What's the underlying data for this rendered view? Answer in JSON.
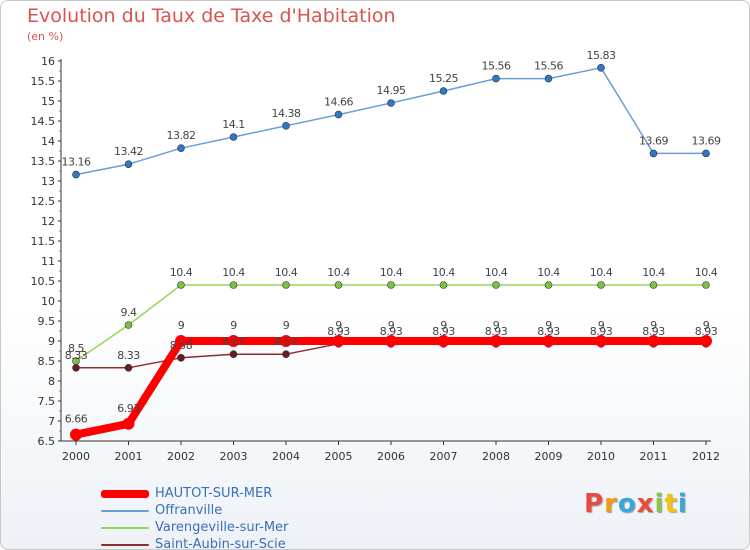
{
  "chart_data": {
    "type": "line",
    "title": "Evolution du Taux de Taxe d'Habitation",
    "subtitle": "(en %)",
    "x": [
      "2000",
      "2001",
      "2002",
      "2003",
      "2004",
      "2005",
      "2006",
      "2007",
      "2008",
      "2009",
      "2010",
      "2011",
      "2012"
    ],
    "ylim": [
      6.5,
      16
    ],
    "y_ticks": [
      "6.5",
      "7",
      "7.5",
      "8",
      "8.5",
      "9",
      "9.5",
      "10",
      "10.5",
      "11",
      "11.5",
      "12",
      "12.5",
      "13",
      "13.5",
      "14",
      "14.5",
      "15",
      "15.5",
      "16"
    ],
    "grid": false,
    "legend_position": "bottom-left",
    "series": [
      {
        "name": "HAUTOT-SUR-MER",
        "color": "#ff0000",
        "values": [
          6.66,
          6.93,
          9,
          9,
          9,
          9,
          9,
          9,
          9,
          9,
          9,
          9,
          9
        ],
        "labels": [
          "6.66",
          "6.93",
          "9",
          "9",
          "9",
          "9",
          "9",
          "9",
          "9",
          "9",
          "9",
          "9",
          "9"
        ]
      },
      {
        "name": "Offranville",
        "color": "#6a9fd4",
        "values": [
          13.16,
          13.42,
          13.82,
          14.1,
          14.38,
          14.66,
          14.95,
          15.25,
          15.56,
          15.56,
          15.83,
          13.69,
          13.69
        ],
        "labels": [
          "13.16",
          "13.42",
          "13.82",
          "14.1",
          "14.38",
          "14.66",
          "14.95",
          "15.25",
          "15.56",
          "15.56",
          "15.83",
          "13.69",
          "13.69"
        ]
      },
      {
        "name": "Varengeville-sur-Mer",
        "color": "#99d65c",
        "values": [
          8.5,
          9.4,
          10.4,
          10.4,
          10.4,
          10.4,
          10.4,
          10.4,
          10.4,
          10.4,
          10.4,
          10.4,
          10.4
        ],
        "labels": [
          "8.5",
          "9.4",
          "10.4",
          "10.4",
          "10.4",
          "10.4",
          "10.4",
          "10.4",
          "10.4",
          "10.4",
          "10.4",
          "10.4",
          "10.4"
        ]
      },
      {
        "name": "Saint-Aubin-sur-Scie",
        "color": "#8b2e2e",
        "values": [
          8.33,
          8.33,
          8.58,
          8.67,
          8.67,
          8.93,
          8.93,
          8.93,
          8.93,
          8.93,
          8.93,
          8.93,
          8.93
        ],
        "labels": [
          "8.33",
          "8.33",
          "8.58",
          "8.67",
          "8.67",
          "8.93",
          "8.93",
          "8.93",
          "8.93",
          "8.93",
          "8.93",
          "8.93",
          "8.93"
        ]
      }
    ]
  },
  "logo": {
    "letters": [
      {
        "char": "P",
        "color": "#e84c3d"
      },
      {
        "char": "r",
        "color": "#f39c12"
      },
      {
        "char": "o",
        "color": "#3aa7dc"
      },
      {
        "char": "x",
        "color": "#e84c3d"
      },
      {
        "char": "i",
        "color": "#8bc34a"
      },
      {
        "char": "t",
        "color": "#f1c40f"
      },
      {
        "char": "i",
        "color": "#3aa7dc"
      }
    ]
  }
}
